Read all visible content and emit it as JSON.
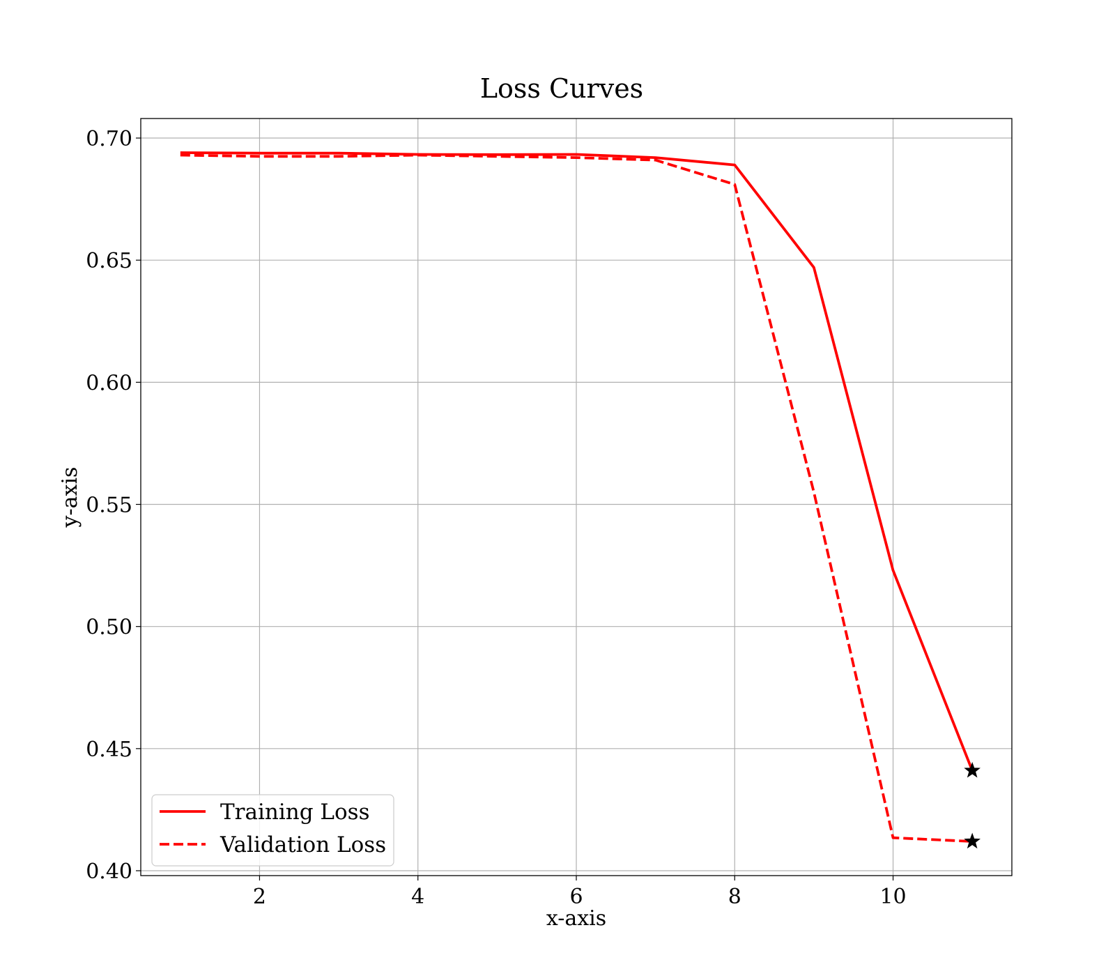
{
  "chart_data": {
    "type": "line",
    "title": "Loss Curves",
    "xlabel": "x-axis",
    "ylabel": "y-axis",
    "xlim": [
      0.5,
      11.5
    ],
    "ylim": [
      0.398,
      0.708
    ],
    "xticks": [
      2,
      4,
      6,
      8,
      10
    ],
    "yticks": [
      0.4,
      0.45,
      0.5,
      0.55,
      0.6,
      0.65,
      0.7
    ],
    "xtick_labels": [
      "2",
      "4",
      "6",
      "8",
      "10"
    ],
    "ytick_labels": [
      "0.40",
      "0.45",
      "0.50",
      "0.55",
      "0.60",
      "0.65",
      "0.70"
    ],
    "grid": true,
    "legend_position": "lower-left",
    "series": [
      {
        "name": "Training Loss",
        "color": "#ff0000",
        "style": "solid",
        "x": [
          1,
          2,
          3,
          4,
          5,
          6,
          7,
          8,
          9,
          10,
          11
        ],
        "y": [
          0.694,
          0.6938,
          0.6938,
          0.6933,
          0.6932,
          0.6933,
          0.692,
          0.689,
          0.647,
          0.523,
          0.441
        ]
      },
      {
        "name": "Validation Loss",
        "color": "#ff0000",
        "style": "dashed",
        "x": [
          1,
          2,
          3,
          4,
          5,
          6,
          7,
          8,
          9,
          10,
          11
        ],
        "y": [
          0.693,
          0.6925,
          0.6925,
          0.693,
          0.6925,
          0.692,
          0.691,
          0.681,
          0.555,
          0.4135,
          0.412
        ]
      }
    ],
    "annotations": [
      {
        "marker": "star",
        "color": "#000000",
        "x": 11,
        "y": 0.441
      },
      {
        "marker": "star",
        "color": "#000000",
        "x": 11,
        "y": 0.412
      }
    ]
  }
}
